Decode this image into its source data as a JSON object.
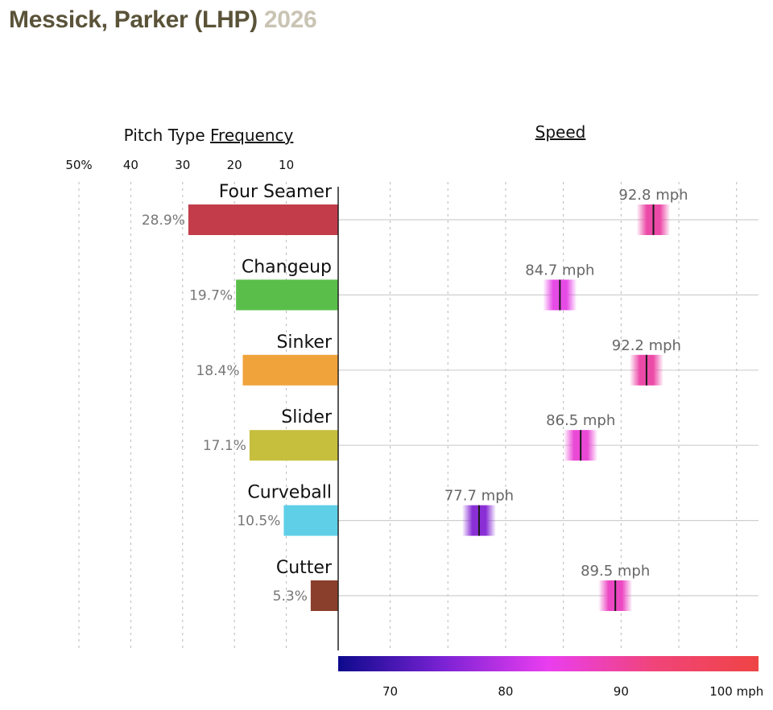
{
  "header": {
    "player": "Messick, Parker (LHP)",
    "year": "2026"
  },
  "chart_data": {
    "type": "bar",
    "frequency_panel": {
      "title_prefix": "Pitch Type ",
      "title_link": "Frequency",
      "tick_labels": [
        "50%",
        "40",
        "30",
        "20",
        "10"
      ],
      "ticks": [
        50,
        40,
        30,
        20,
        10
      ],
      "xlim": [
        0,
        50
      ]
    },
    "speed_panel": {
      "title": "Speed",
      "colorbar_tick_labels": [
        "70",
        "80",
        "90",
        "100 mph"
      ],
      "colorbar_ticks": [
        70,
        80,
        90,
        100
      ],
      "xlim": [
        65.5,
        101.9
      ],
      "colorscale": [
        "#0d0a8c",
        "#7b22d4",
        "#ea3ef0",
        "#f0447a",
        "#ef4444"
      ]
    },
    "pitches": [
      {
        "name": "Four Seamer",
        "frequency": 28.9,
        "frequency_label": "28.9%",
        "speed": 92.8,
        "speed_label": "92.8 mph",
        "color": "#c33c4a",
        "speed_color": "#ec4aa8"
      },
      {
        "name": "Changeup",
        "frequency": 19.7,
        "frequency_label": "19.7%",
        "speed": 84.7,
        "speed_label": "84.7 mph",
        "color": "#5abf4a",
        "speed_color": "#e64be6"
      },
      {
        "name": "Sinker",
        "frequency": 18.4,
        "frequency_label": "18.4%",
        "speed": 92.2,
        "speed_label": "92.2 mph",
        "color": "#f0a33a",
        "speed_color": "#ec4aa8"
      },
      {
        "name": "Slider",
        "frequency": 17.1,
        "frequency_label": "17.1%",
        "speed": 86.5,
        "speed_label": "86.5 mph",
        "color": "#c6bf3e",
        "speed_color": "#ea49d6"
      },
      {
        "name": "Curveball",
        "frequency": 10.5,
        "frequency_label": "10.5%",
        "speed": 77.7,
        "speed_label": "77.7 mph",
        "color": "#5fcfe8",
        "speed_color": "#8a2fd6"
      },
      {
        "name": "Cutter",
        "frequency": 5.3,
        "frequency_label": "5.3%",
        "speed": 89.5,
        "speed_label": "89.5 mph",
        "color": "#8a3f2c",
        "speed_color": "#ec48c4"
      }
    ]
  }
}
